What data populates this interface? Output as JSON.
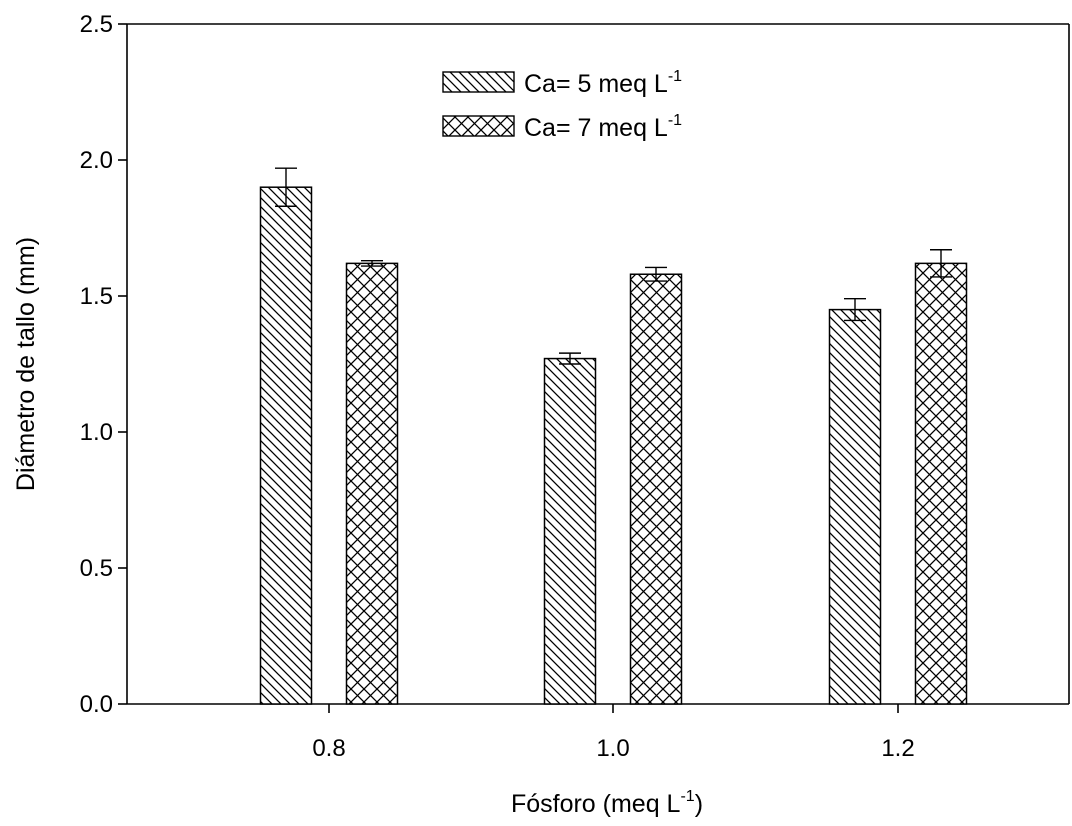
{
  "chart_data": {
    "type": "bar",
    "categories": [
      "0.8",
      "1.0",
      "1.2"
    ],
    "series": [
      {
        "name": "Ca= 5 meq L",
        "superscript": "-1",
        "pattern": "diagonal-hatch",
        "values": [
          1.9,
          1.27,
          1.45
        ],
        "errors": [
          0.07,
          0.02,
          0.04
        ]
      },
      {
        "name": "Ca= 7 meq L",
        "superscript": "-1",
        "pattern": "cross-hatch",
        "values": [
          1.62,
          1.58,
          1.62
        ],
        "errors": [
          0.01,
          0.025,
          0.05
        ]
      }
    ],
    "xlabel": "Fósforo (meq L",
    "xlabel_superscript": "-1",
    "xlabel_suffix": ")",
    "ylabel": "Diámetro de tallo (mm)",
    "ylim": [
      0,
      2.5
    ],
    "yticks": [
      "0.0",
      "0.5",
      "1.0",
      "1.5",
      "2.0",
      "2.5"
    ],
    "grid": false,
    "legend_position": "top-center"
  },
  "colors": {
    "bar_fill": "#ffffff",
    "stroke": "#000000"
  }
}
